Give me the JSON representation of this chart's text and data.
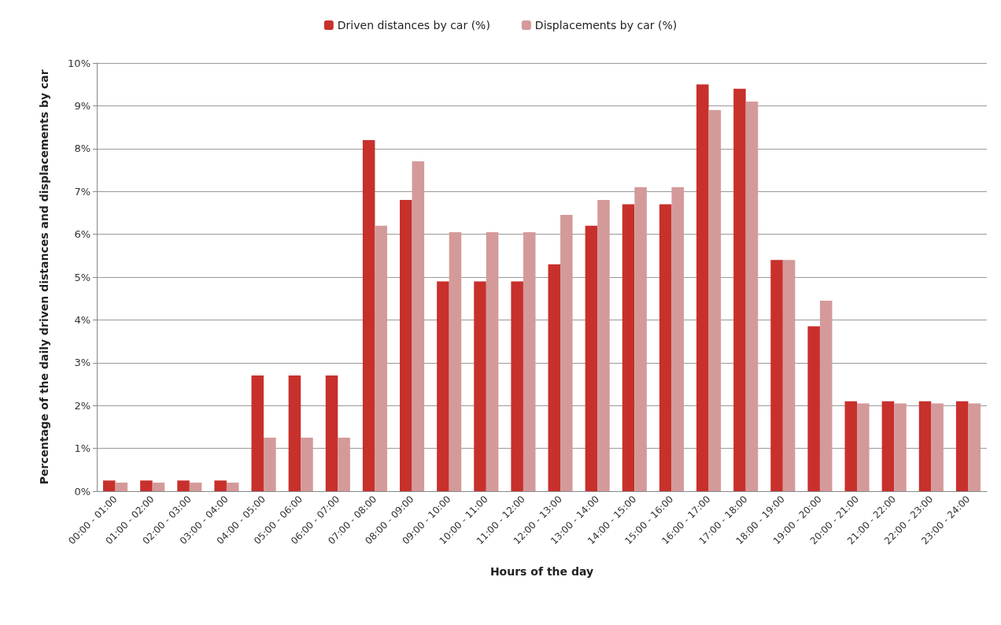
{
  "chart_data": {
    "type": "bar",
    "xlabel": "Hours of the day",
    "ylabel": "Percentage of the daily driven distances and displacements by car",
    "categories": [
      "00:00 - 01:00",
      "01:00 - 02:00",
      "02:00 - 03:00",
      "03:00 - 04:00",
      "04:00 - 05:00",
      "05:00 - 06:00",
      "06:00 - 07:00",
      "07:00 - 08:00",
      "08:00 - 09:00",
      "09:00 - 10:00",
      "10:00 - 11:00",
      "11:00 - 12:00",
      "12:00 - 13:00",
      "13:00 - 14:00",
      "14:00 - 15:00",
      "15:00 - 16:00",
      "16:00 - 17:00",
      "17:00 - 18:00",
      "18:00 - 19:00",
      "19:00 - 20:00",
      "20:00 - 21:00",
      "21:00 - 22:00",
      "22:00 - 23:00",
      "23:00 - 24:00"
    ],
    "series": [
      {
        "name": "Driven distances by car (%)",
        "color": "#c8302c",
        "values": [
          0.25,
          0.25,
          0.25,
          0.25,
          2.7,
          2.7,
          2.7,
          8.2,
          6.8,
          4.9,
          4.9,
          4.9,
          5.3,
          6.2,
          6.7,
          6.7,
          9.5,
          9.4,
          5.4,
          3.85,
          2.1,
          2.1,
          2.1,
          2.1
        ]
      },
      {
        "name": "Displacements by car (%)",
        "color": "#d49a9a",
        "values": [
          0.2,
          0.2,
          0.2,
          0.2,
          1.25,
          1.25,
          1.25,
          6.2,
          7.7,
          6.05,
          6.05,
          6.05,
          6.45,
          6.8,
          7.1,
          7.1,
          8.9,
          9.1,
          5.4,
          4.45,
          2.05,
          2.05,
          2.05,
          2.05
        ]
      }
    ],
    "ylim": [
      0,
      10
    ],
    "yticks": [
      {
        "value": 0,
        "label": "0%"
      },
      {
        "value": 1,
        "label": "1%"
      },
      {
        "value": 2,
        "label": "2%"
      },
      {
        "value": 3,
        "label": "3%"
      },
      {
        "value": 4,
        "label": "4%"
      },
      {
        "value": 5,
        "label": "5%"
      },
      {
        "value": 6,
        "label": "6%"
      },
      {
        "value": 7,
        "label": "7%"
      },
      {
        "value": 8,
        "label": "8%"
      },
      {
        "value": 9,
        "label": "9%"
      },
      {
        "value": 10,
        "label": "10%"
      }
    ],
    "grid": "y",
    "legend": "top"
  }
}
